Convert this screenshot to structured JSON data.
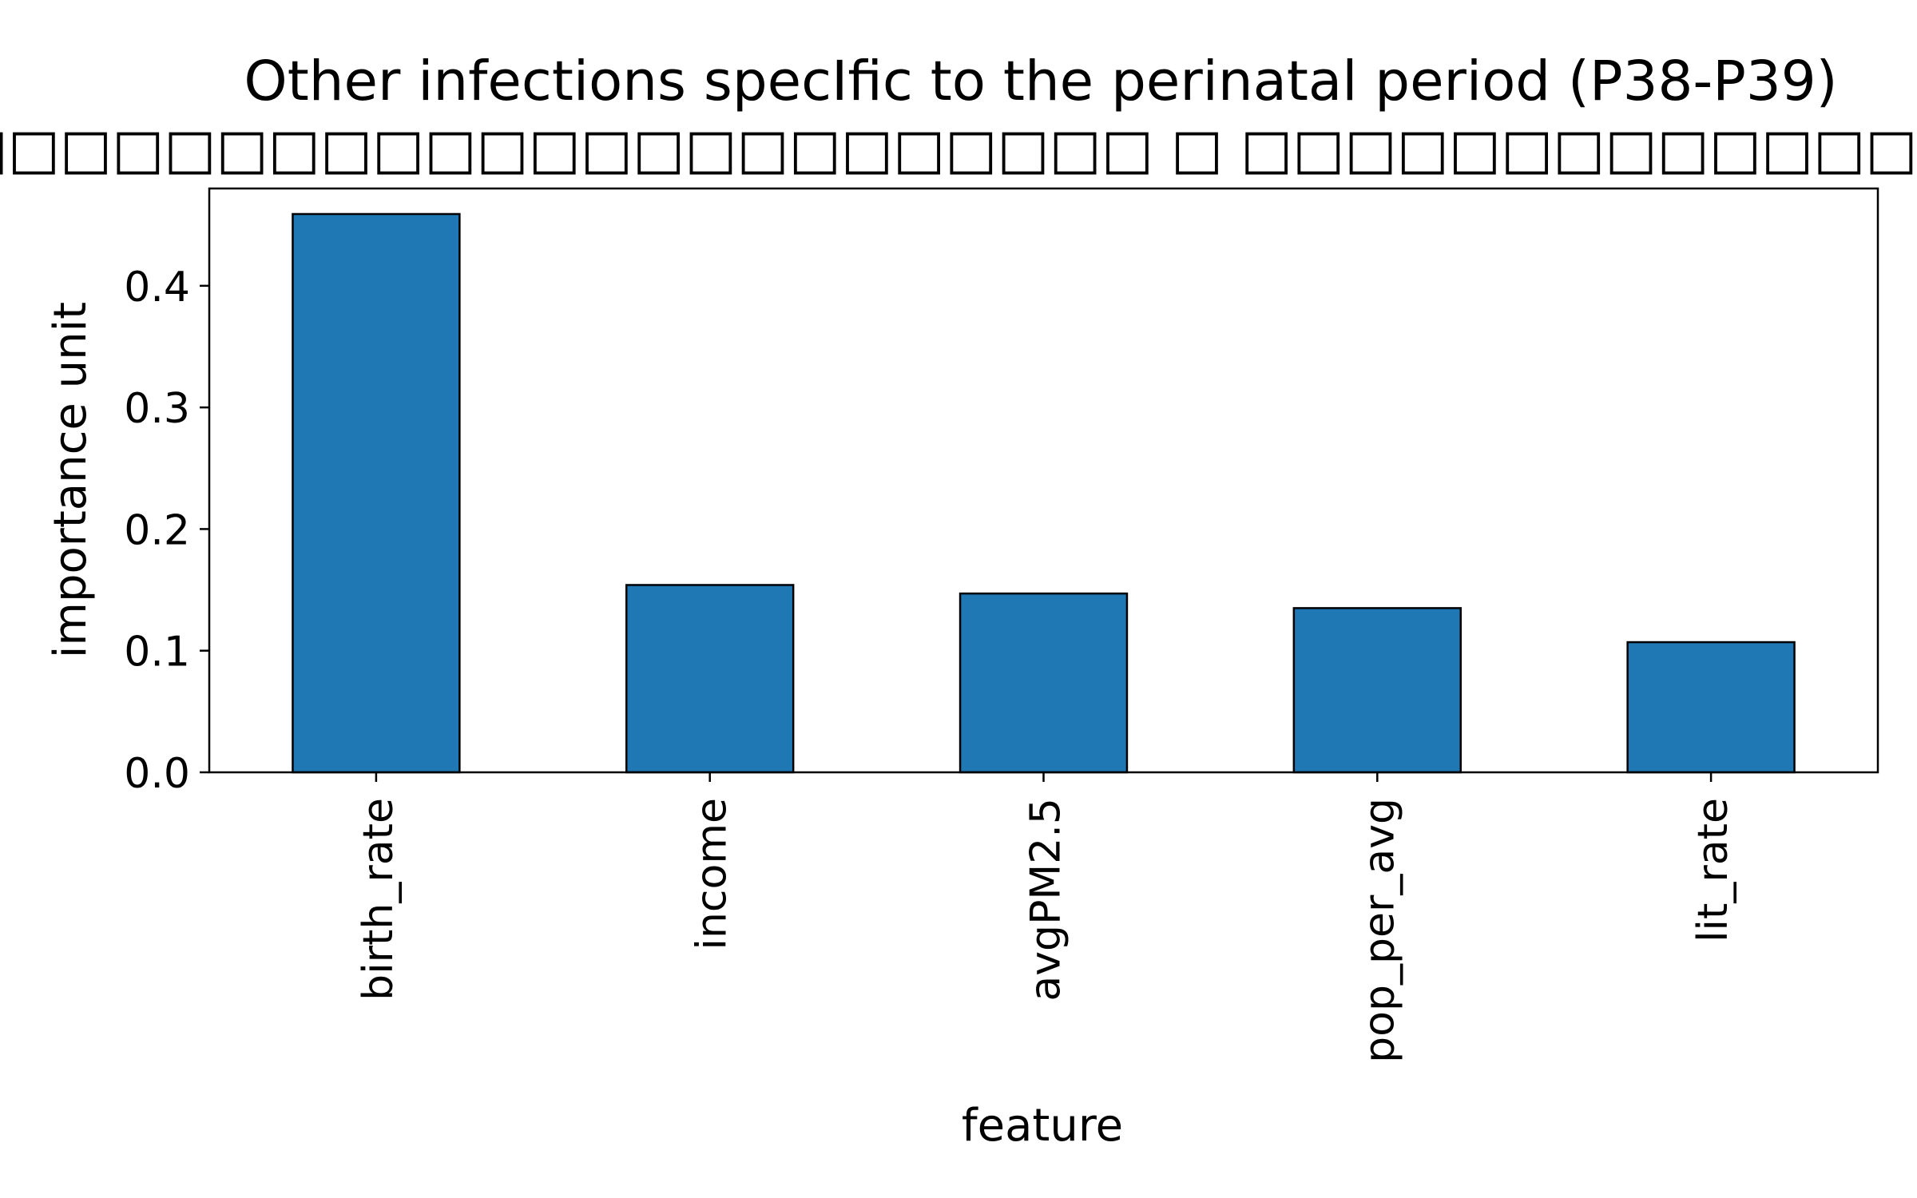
{
  "chart_data": {
    "type": "bar",
    "title_line1": "Other infections specIfic to the perinatal period (P38-P39)",
    "title_line2": "□□□□□□□□□□□□□□□□□□□□□□□□□ □ □□□□□□□□□□□□□□□□□□□",
    "xlabel": "feature",
    "ylabel": "importance unit",
    "categories": [
      "birth_rate",
      "income",
      "avgPM2.5",
      "pop_per_avg",
      "lit_rate"
    ],
    "values": [
      0.459,
      0.154,
      0.147,
      0.135,
      0.107
    ],
    "ylim": [
      0,
      0.48
    ],
    "yticks": [
      0.0,
      0.1,
      0.2,
      0.3,
      0.4
    ],
    "ytick_labels": [
      "0.0",
      "0.1",
      "0.2",
      "0.3",
      "0.4"
    ],
    "bar_color": "#1f77b4",
    "edge_color": "#000000",
    "grid": false,
    "legend": "none"
  }
}
